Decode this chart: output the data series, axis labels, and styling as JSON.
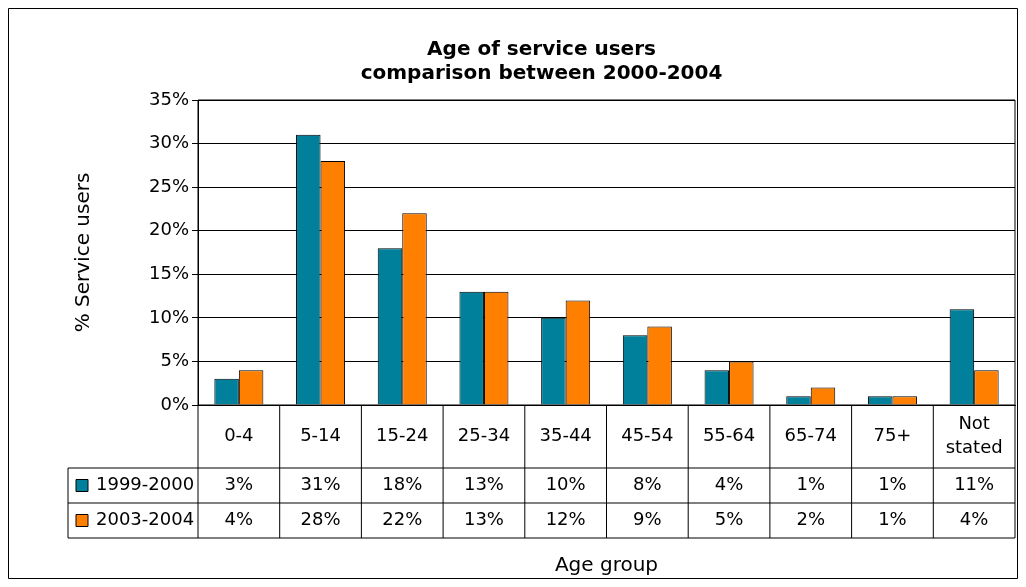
{
  "chart_data": {
    "type": "bar",
    "title": [
      "Age of service users",
      "comparison between 2000-2004"
    ],
    "xlabel": "Age group",
    "ylabel": "% Service users",
    "categories": [
      "0-4",
      "5-14",
      "15-24",
      "25-34",
      "35-44",
      "45-54",
      "55-64",
      "65-74",
      "75+",
      "Not stated"
    ],
    "series": [
      {
        "name": "1999-2000",
        "color": "#00809a",
        "values": [
          3,
          31,
          18,
          13,
          10,
          8,
          4,
          1,
          1,
          11
        ],
        "value_labels": [
          "3%",
          "31%",
          "18%",
          "13%",
          "10%",
          "8%",
          "4%",
          "1%",
          "1%",
          "11%"
        ]
      },
      {
        "name": "2003-2004",
        "color": "#ff8000",
        "values": [
          4,
          28,
          22,
          13,
          12,
          9,
          5,
          2,
          1,
          4
        ],
        "value_labels": [
          "4%",
          "28%",
          "22%",
          "13%",
          "12%",
          "9%",
          "5%",
          "2%",
          "1%",
          "4%"
        ]
      }
    ],
    "ylim": [
      0,
      35
    ],
    "yticks": [
      {
        "value": 0,
        "label": "0%"
      },
      {
        "value": 5,
        "label": "5%"
      },
      {
        "value": 10,
        "label": "10%"
      },
      {
        "value": 15,
        "label": "15%"
      },
      {
        "value": 20,
        "label": "20%"
      },
      {
        "value": 25,
        "label": "25%"
      },
      {
        "value": 30,
        "label": "30%"
      },
      {
        "value": 35,
        "label": "35%"
      }
    ],
    "grid": "y",
    "legend": "bottom"
  }
}
